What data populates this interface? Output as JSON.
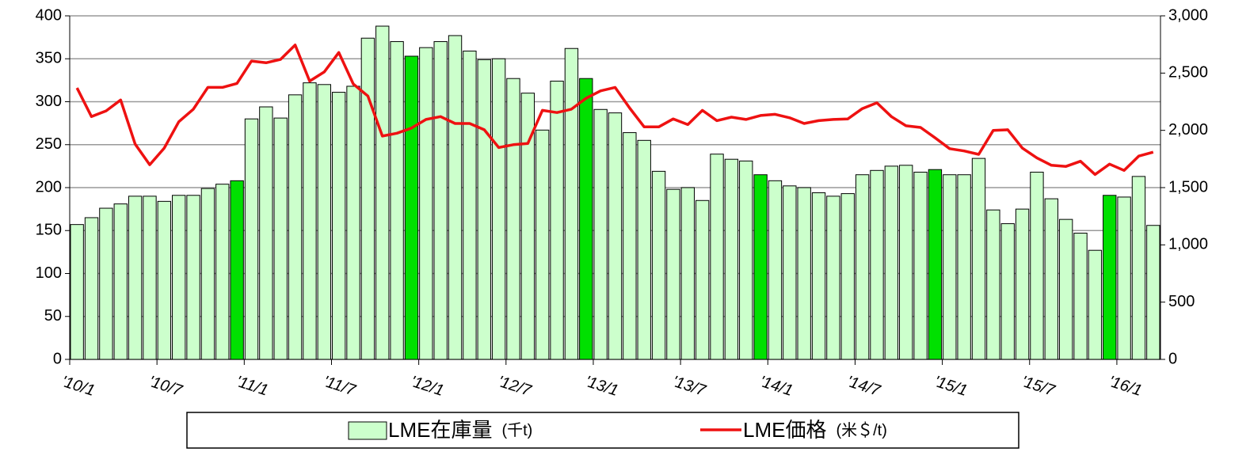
{
  "chart_data": {
    "type": "bar_line",
    "categories": [
      "'10/1",
      null,
      null,
      null,
      null,
      null,
      "'10/7",
      null,
      null,
      null,
      null,
      null,
      "'11/1",
      null,
      null,
      null,
      null,
      null,
      "'11/7",
      null,
      null,
      null,
      null,
      null,
      "'12/1",
      null,
      null,
      null,
      null,
      null,
      "'12/7",
      null,
      null,
      null,
      null,
      null,
      "'13/1",
      null,
      null,
      null,
      null,
      null,
      "'13/7",
      null,
      null,
      null,
      null,
      null,
      "'14/1",
      null,
      null,
      null,
      null,
      null,
      "'14/7",
      null,
      null,
      null,
      null,
      null,
      "'15/1",
      null,
      null,
      null,
      null,
      null,
      "'15/7",
      null,
      null,
      null,
      null,
      null,
      "'16/1",
      null,
      null
    ],
    "series": [
      {
        "name": "LME在庫量",
        "unit": "(千t)",
        "color": "#ccffcc",
        "colors": [
          "#ccffcc",
          "#ccffcc",
          "#ccffcc",
          "#ccffcc",
          "#ccffcc",
          "#ccffcc",
          "#ccffcc",
          "#ccffcc",
          "#ccffcc",
          "#ccffcc",
          "#ccffcc",
          "#00e000",
          "#ccffcc",
          "#ccffcc",
          "#ccffcc",
          "#ccffcc",
          "#ccffcc",
          "#ccffcc",
          "#ccffcc",
          "#ccffcc",
          "#ccffcc",
          "#ccffcc",
          "#ccffcc",
          "#00e000",
          "#ccffcc",
          "#ccffcc",
          "#ccffcc",
          "#ccffcc",
          "#ccffcc",
          "#ccffcc",
          "#ccffcc",
          "#ccffcc",
          "#ccffcc",
          "#ccffcc",
          "#ccffcc",
          "#00e000",
          "#ccffcc",
          "#ccffcc",
          "#ccffcc",
          "#ccffcc",
          "#ccffcc",
          "#ccffcc",
          "#ccffcc",
          "#ccffcc",
          "#ccffcc",
          "#ccffcc",
          "#ccffcc",
          "#00e000",
          "#ccffcc",
          "#ccffcc",
          "#ccffcc",
          "#ccffcc",
          "#ccffcc",
          "#ccffcc",
          "#ccffcc",
          "#ccffcc",
          "#ccffcc",
          "#ccffcc",
          "#ccffcc",
          "#00e000",
          "#ccffcc",
          "#ccffcc",
          "#ccffcc",
          "#ccffcc",
          "#ccffcc",
          "#ccffcc",
          "#ccffcc",
          "#ccffcc",
          "#ccffcc",
          "#ccffcc",
          "#ccffcc",
          "#00e000",
          "#ccffcc",
          "#ccffcc",
          "#ccffcc"
        ],
        "values": [
          157,
          165,
          176,
          181,
          190,
          190,
          184,
          191,
          191,
          199,
          204,
          208,
          280,
          294,
          281,
          308,
          322,
          320,
          311,
          318,
          374,
          388,
          370,
          353,
          363,
          370,
          377,
          359,
          349,
          350,
          327,
          310,
          267,
          324,
          362,
          327,
          291,
          287,
          264,
          255,
          219,
          198,
          200,
          185,
          239,
          233,
          231,
          215,
          208,
          202,
          200,
          194,
          190,
          193,
          215,
          220,
          225,
          226,
          218,
          221,
          215,
          215,
          234,
          174,
          158,
          175,
          218,
          187,
          163,
          147,
          127,
          191,
          189,
          213,
          156
        ]
      },
      {
        "name": "LME価格",
        "unit": "(米＄/t)",
        "color": "#ee1111",
        "axis": "y2",
        "values": [
          2370,
          2120,
          2170,
          2265,
          1880,
          1700,
          1845,
          2075,
          2185,
          2375,
          2375,
          2410,
          2605,
          2590,
          2620,
          2745,
          2430,
          2510,
          2680,
          2405,
          2300,
          1950,
          1975,
          2020,
          2095,
          2120,
          2060,
          2060,
          2005,
          1850,
          1875,
          1885,
          2175,
          2155,
          2185,
          2280,
          2345,
          2375,
          2195,
          2030,
          2030,
          2100,
          2050,
          2175,
          2085,
          2115,
          2095,
          2130,
          2140,
          2110,
          2060,
          2085,
          2095,
          2100,
          2190,
          2240,
          2120,
          2040,
          2025,
          1935,
          1840,
          1820,
          1790,
          2000,
          2005,
          1845,
          1760,
          1695,
          1685,
          1730,
          1615,
          1705,
          1650,
          1775,
          1810
        ]
      }
    ],
    "ylim": [
      0,
      400
    ],
    "yticks": [
      0,
      50,
      100,
      150,
      200,
      250,
      300,
      350,
      400
    ],
    "y2lim": [
      0,
      3000
    ],
    "y2ticks": [
      0,
      500,
      {
        "value": 1000,
        "label": "1,000"
      },
      {
        "value": 1500,
        "label": "1,500"
      },
      {
        "value": 2000,
        "label": "2,000"
      },
      {
        "value": 2500,
        "label": "2,500"
      },
      {
        "value": 3000,
        "label": "3,000"
      }
    ],
    "grid": true,
    "legend": "bottom"
  }
}
